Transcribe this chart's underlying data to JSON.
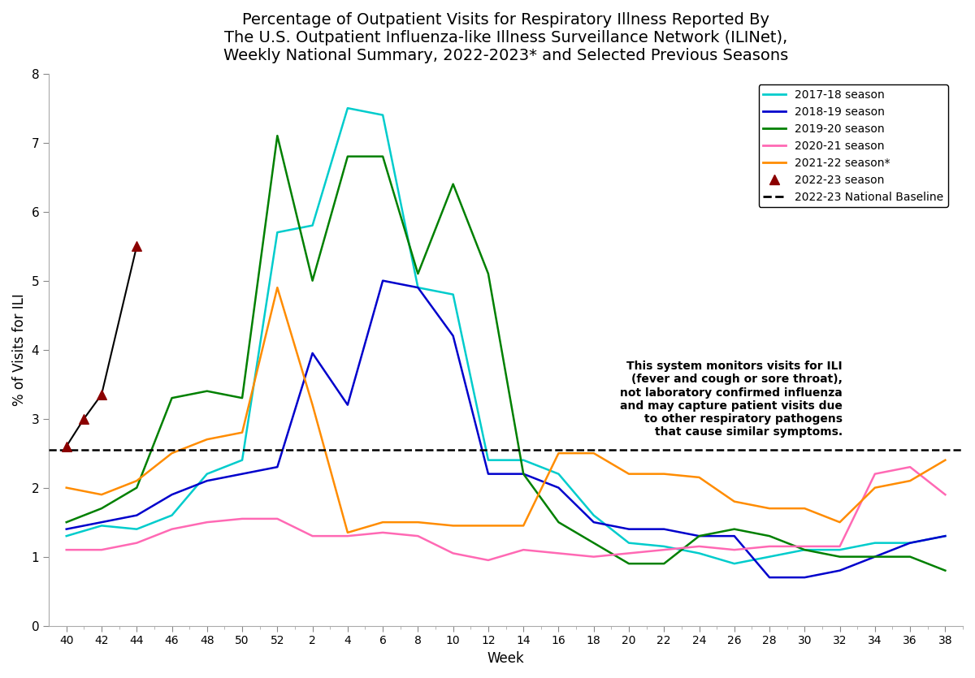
{
  "title": "Percentage of Outpatient Visits for Respiratory Illness Reported By\nThe U.S. Outpatient Influenza-like Illness Surveillance Network (ILINet),\nWeekly National Summary, 2022-2023* and Selected Previous Seasons",
  "xlabel": "Week",
  "ylabel": "% of Visits for ILI",
  "ylim": [
    0,
    8
  ],
  "yticks": [
    0,
    1,
    2,
    3,
    4,
    5,
    6,
    7,
    8
  ],
  "baseline": 2.55,
  "annotation_text": "This system monitors visits for ILI\n(fever and cough or sore throat),\nnot laboratory confirmed influenza\nand may capture patient visits due\nto other respiratory pathogens\nthat cause similar symptoms.",
  "week_display": [
    40,
    42,
    44,
    46,
    48,
    50,
    52,
    2,
    4,
    6,
    8,
    10,
    12,
    14,
    16,
    18,
    20,
    22,
    24,
    26,
    28,
    30,
    32,
    34,
    36,
    38
  ],
  "seasons": {
    "2017-18": {
      "color": "#00CCCC",
      "label": "2017-18 season",
      "weeks": [
        40,
        42,
        44,
        46,
        48,
        50,
        52,
        2,
        4,
        6,
        8,
        10,
        12,
        14,
        16,
        18,
        20,
        22,
        24,
        26,
        28,
        30,
        32,
        34,
        36,
        38
      ],
      "values": [
        1.3,
        1.45,
        1.4,
        1.6,
        2.2,
        2.4,
        5.7,
        5.8,
        7.5,
        7.4,
        4.9,
        4.8,
        2.4,
        2.4,
        2.2,
        1.6,
        1.2,
        1.15,
        1.05,
        0.9,
        1.0,
        1.1,
        1.1,
        1.2,
        1.2,
        1.3
      ]
    },
    "2018-19": {
      "color": "#0000CC",
      "label": "2018-19 season",
      "weeks": [
        40,
        42,
        44,
        46,
        48,
        50,
        52,
        2,
        4,
        6,
        8,
        10,
        12,
        14,
        16,
        18,
        20,
        22,
        24,
        26,
        28,
        30,
        32,
        34,
        36,
        38
      ],
      "values": [
        1.4,
        1.5,
        1.6,
        1.9,
        2.1,
        2.2,
        2.3,
        3.95,
        3.2,
        5.0,
        4.9,
        4.2,
        2.2,
        2.2,
        2.0,
        1.5,
        1.4,
        1.4,
        1.3,
        1.3,
        0.7,
        0.7,
        0.8,
        1.0,
        1.2,
        1.3
      ]
    },
    "2019-20": {
      "color": "#008000",
      "label": "2019-20 season",
      "weeks": [
        40,
        42,
        44,
        46,
        48,
        50,
        52,
        2,
        4,
        6,
        8,
        10,
        12,
        14,
        16,
        18,
        20,
        22,
        24,
        26,
        28,
        30,
        32,
        34,
        36,
        38
      ],
      "values": [
        1.5,
        1.7,
        2.0,
        3.3,
        3.4,
        3.3,
        7.1,
        5.0,
        6.8,
        6.8,
        5.1,
        6.4,
        5.1,
        2.2,
        1.5,
        1.2,
        0.9,
        0.9,
        1.3,
        1.4,
        1.3,
        1.1,
        1.0,
        1.0,
        1.0,
        0.8
      ]
    },
    "2020-21": {
      "color": "#FF69B4",
      "label": "2020-21 season",
      "weeks": [
        40,
        42,
        44,
        46,
        48,
        50,
        52,
        2,
        4,
        6,
        8,
        10,
        12,
        14,
        16,
        18,
        20,
        22,
        24,
        26,
        28,
        30,
        32,
        34,
        36,
        38
      ],
      "values": [
        1.1,
        1.1,
        1.2,
        1.4,
        1.5,
        1.55,
        1.55,
        1.3,
        1.3,
        1.35,
        1.3,
        1.05,
        0.95,
        1.1,
        1.05,
        1.0,
        1.05,
        1.1,
        1.15,
        1.1,
        1.15,
        1.15,
        1.15,
        2.2,
        2.3,
        1.9
      ]
    },
    "2021-22": {
      "color": "#FF8C00",
      "label": "2021-22 season*",
      "weeks": [
        40,
        42,
        44,
        46,
        48,
        50,
        52,
        2,
        4,
        6,
        8,
        10,
        12,
        14,
        16,
        18,
        20,
        22,
        24,
        26,
        28,
        30,
        32,
        34,
        36,
        38
      ],
      "values": [
        2.0,
        1.9,
        2.1,
        2.5,
        2.7,
        2.8,
        4.9,
        3.2,
        1.35,
        1.5,
        1.5,
        1.45,
        1.45,
        1.45,
        2.5,
        2.5,
        2.2,
        2.2,
        2.15,
        1.8,
        1.7,
        1.7,
        1.5,
        2.0,
        2.1,
        2.4
      ]
    },
    "2022-23": {
      "color": "#8B0000",
      "label": "2022-23 season",
      "weeks": [
        40,
        41,
        42,
        44
      ],
      "values": [
        2.6,
        3.0,
        3.35,
        5.5
      ],
      "marker": "^"
    }
  }
}
